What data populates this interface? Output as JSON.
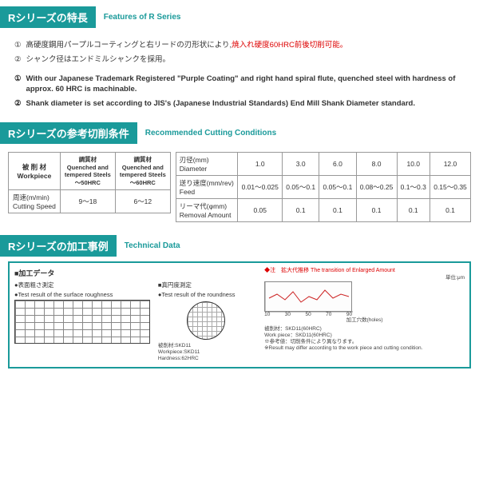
{
  "sections": {
    "features": {
      "title": "Rシリーズの特長",
      "subtitle": "Features of R Series"
    },
    "conditions": {
      "title": "Rシリーズの参考切削条件",
      "subtitle": "Recommended Cutting Conditions"
    },
    "technical": {
      "title": "Rシリーズの加工事例",
      "subtitle": "Technical Data"
    }
  },
  "features_jp": [
    {
      "num": "①",
      "pre": "高硬度鋼用パープルコーティングと右リードの刃形状により,",
      "hl": "焼入れ硬度60HRC前後切削可能。"
    },
    {
      "num": "②",
      "pre": "シャンク径はエンドミルシャンクを採用。",
      "hl": ""
    }
  ],
  "features_en": [
    {
      "num": "①",
      "text": "With our Japanese Trademark Registered \"Purple Coating\" and right hand spiral flute, quenched steel with hardness of approx. 60 HRC is machinable."
    },
    {
      "num": "②",
      "text": "Shank diameter is set according to JIS's (Japanese Industrial Standards) End Mill Shank Diameter standard."
    }
  ],
  "table1": {
    "head": [
      "被 削 材\nWorkpiece",
      "調質材\nQuenched and\ntempered Steels\n～50HRC",
      "調質材\nQuenched and\ntempered Steels\n～60HRC"
    ],
    "row": [
      "周速(m/min)\nCutting Speed",
      "9～18",
      "6～12"
    ]
  },
  "table2": {
    "rows": [
      [
        "刃径(mm)\nDiameter",
        "1.0",
        "3.0",
        "6.0",
        "8.0",
        "10.0",
        "12.0"
      ],
      [
        "送り速度(mm/rev)\nFeed",
        "0.01～0.025",
        "0.05～0.1",
        "0.05～0.1",
        "0.08～0.25",
        "0.1～0.3",
        "0.15～0.35"
      ],
      [
        "リーマ代(φmm)\nRemoval Amount",
        "0.05",
        "0.1",
        "0.1",
        "0.1",
        "0.1",
        "0.1"
      ]
    ]
  },
  "tech": {
    "heading": "■加工データ",
    "left_sub1": "●表面粗さ測定",
    "left_sub2": "●Test result of the surface roughness",
    "right_sub1": "■真円度測定",
    "right_sub2": "●Test result of the roundness",
    "chart_title": "◆注　拡大代推移  The transition of Enlarged Amount",
    "chart_unit": "単位:μm",
    "chart_x_label": "加工穴数(holes)",
    "chart_x_ticks": [
      "10",
      "20",
      "30",
      "40",
      "50",
      "60",
      "70",
      "80",
      "90"
    ],
    "chart_y_ticks": [
      "0",
      "3",
      "5"
    ],
    "note1": "被削材：SKD11(60HRC)",
    "note2": "Work piece：SKD11(60HRC)",
    "note3": "※参考値：切削条件により異なります。",
    "note4": "※Result may differ according to the work piece and cutting condition.",
    "box_note1": "被削材:SKD11",
    "box_note2": "Workpiece:SKD11",
    "box_note3": "Hardness:62HRC"
  },
  "colors": {
    "accent": "#1a9a9a",
    "highlight": "#d00"
  }
}
